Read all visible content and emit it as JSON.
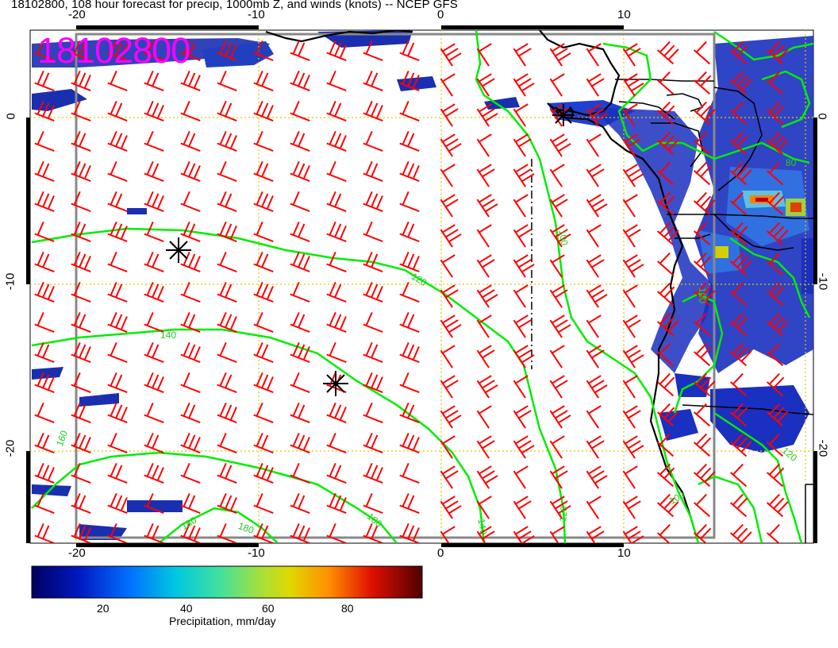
{
  "title": "18102800, 108 hour forecast for precip, 1000mb Z, and winds (knots) -- NCEP GFS",
  "stamp": "18102800",
  "x_ticks_top": [
    "-20",
    "-10",
    "0",
    "10"
  ],
  "x_ticks_bottom": [
    "-20",
    "-10",
    "0",
    "10"
  ],
  "y_ticks_left": [
    "0",
    "-10",
    "-20"
  ],
  "y_ticks_right": [
    "0",
    "-10",
    "-20"
  ],
  "contour_labels": [
    "100",
    "120",
    "140",
    "160",
    "180",
    "180",
    "180",
    "140",
    "120",
    "100",
    "100",
    "80",
    "100",
    "120"
  ],
  "colorbar": {
    "label": "Precipitation, mm/day",
    "ticks": [
      "20",
      "40",
      "60",
      "80"
    ],
    "range": [
      0,
      100
    ],
    "colors": [
      "#000080",
      "#0030d0",
      "#0080ff",
      "#00d0d0",
      "#40e080",
      "#a0e040",
      "#e0e000",
      "#ff9000",
      "#e02000",
      "#600000"
    ]
  },
  "colors": {
    "wind_barbs": "#ff0000",
    "contours": "#00ee00",
    "stamp": "#ff00ff",
    "grid": "#ddcc00"
  }
}
